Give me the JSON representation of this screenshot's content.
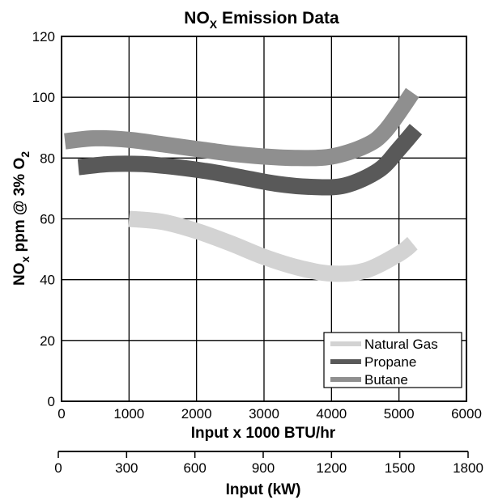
{
  "chart_data": {
    "type": "line",
    "title": "NO",
    "title_sub": "X",
    "title_rest": " Emission Data",
    "ylabel_parts": {
      "a": "NO",
      "a_sub": "x",
      "b": " ppm @ 3% O",
      "b_sub": "2"
    },
    "xlabel": "Input x 1000 BTU/hr",
    "x2label": "Input (kW)",
    "xlim": [
      0,
      6000
    ],
    "ylim": [
      0,
      120
    ],
    "x_ticks": [
      "0",
      "1000",
      "2000",
      "3000",
      "4000",
      "5000",
      "6000"
    ],
    "y_ticks": [
      "0",
      "20",
      "40",
      "60",
      "80",
      "100",
      "120"
    ],
    "x2_ticks": [
      "0",
      "300",
      "600",
      "900",
      "1200",
      "1500",
      "1800"
    ],
    "x2_lim": [
      0,
      1800
    ],
    "grid": true,
    "legend_position": "bottom-right",
    "series": [
      {
        "name": "Natural Gas",
        "color": "#d3d3d3",
        "x": [
          1000,
          1500,
          2000,
          2500,
          3000,
          3500,
          4000,
          4500,
          5000,
          5200
        ],
        "y": [
          60,
          59,
          56,
          52,
          47.5,
          44,
          42,
          43,
          48.5,
          52
        ]
      },
      {
        "name": "Propane",
        "color": "#595959",
        "x": [
          250,
          700,
          1200,
          1700,
          2200,
          2700,
          3200,
          3700,
          4200,
          4700,
          5000,
          5250
        ],
        "y": [
          77,
          78,
          78,
          77,
          75.5,
          73.5,
          71.5,
          70.5,
          71,
          76,
          83,
          89.5
        ]
      },
      {
        "name": "Butane",
        "color": "#8f8f8f",
        "x": [
          50,
          500,
          1000,
          1500,
          2000,
          2500,
          3000,
          3500,
          4000,
          4500,
          4800,
          5200
        ],
        "y": [
          85.5,
          86.5,
          86,
          84.5,
          83,
          81.5,
          80.5,
          80,
          80.5,
          84,
          89,
          101.5
        ]
      }
    ]
  }
}
